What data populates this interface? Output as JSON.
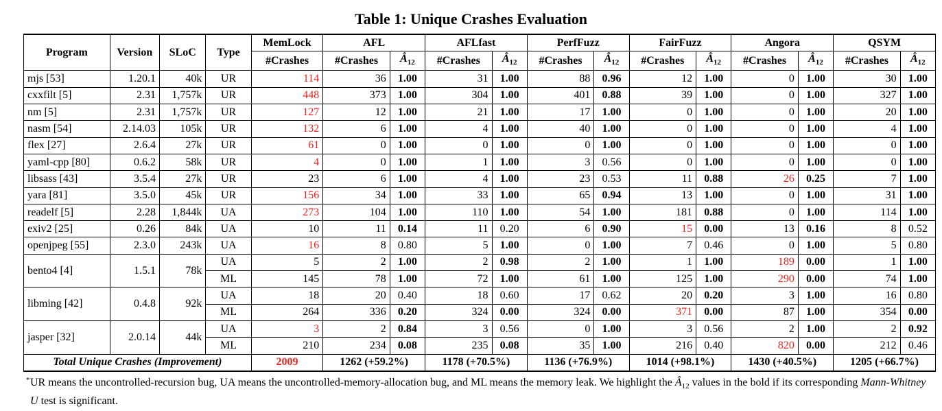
{
  "caption": "Table 1: Unique Crashes Evaluation",
  "headers": {
    "program": "Program",
    "version": "Version",
    "sloc": "SLoC",
    "type": "Type",
    "tools": [
      "MemLock",
      "AFL",
      "AFLfast",
      "PerfFuzz",
      "FairFuzz",
      "Angora",
      "QSYM"
    ],
    "crashes": "#Crashes",
    "a12_symbol": "Â",
    "a12_sub": "12"
  },
  "groups": [
    {
      "program": "mjs [53]",
      "version": "1.20.1",
      "sloc": "40k",
      "rows": [
        {
          "type": "UR",
          "memlock": "114",
          "memlock_red": true,
          "tools": [
            [
              "36",
              "1.00",
              true,
              false
            ],
            [
              "31",
              "1.00",
              true,
              false
            ],
            [
              "88",
              "0.96",
              true,
              false
            ],
            [
              "12",
              "1.00",
              true,
              false
            ],
            [
              "0",
              "1.00",
              true,
              false
            ],
            [
              "30",
              "1.00",
              true,
              false
            ]
          ]
        }
      ]
    },
    {
      "program": "cxxfilt [5]",
      "version": "2.31",
      "sloc": "1,757k",
      "rows": [
        {
          "type": "UR",
          "memlock": "448",
          "memlock_red": true,
          "tools": [
            [
              "373",
              "1.00",
              true,
              false
            ],
            [
              "304",
              "1.00",
              true,
              false
            ],
            [
              "401",
              "0.88",
              true,
              false
            ],
            [
              "39",
              "1.00",
              true,
              false
            ],
            [
              "0",
              "1.00",
              true,
              false
            ],
            [
              "327",
              "1.00",
              true,
              false
            ]
          ]
        }
      ]
    },
    {
      "program": "nm [5]",
      "version": "2.31",
      "sloc": "1,757k",
      "rows": [
        {
          "type": "UR",
          "memlock": "127",
          "memlock_red": true,
          "tools": [
            [
              "12",
              "1.00",
              true,
              false
            ],
            [
              "21",
              "1.00",
              true,
              false
            ],
            [
              "17",
              "1.00",
              true,
              false
            ],
            [
              "0",
              "1.00",
              true,
              false
            ],
            [
              "0",
              "1.00",
              true,
              false
            ],
            [
              "20",
              "1.00",
              true,
              false
            ]
          ]
        }
      ]
    },
    {
      "program": "nasm [54]",
      "version": "2.14.03",
      "sloc": "105k",
      "rows": [
        {
          "type": "UR",
          "memlock": "132",
          "memlock_red": true,
          "tools": [
            [
              "6",
              "1.00",
              true,
              false
            ],
            [
              "4",
              "1.00",
              true,
              false
            ],
            [
              "40",
              "1.00",
              true,
              false
            ],
            [
              "0",
              "1.00",
              true,
              false
            ],
            [
              "0",
              "1.00",
              true,
              false
            ],
            [
              "4",
              "1.00",
              true,
              false
            ]
          ]
        }
      ]
    },
    {
      "program": "flex [27]",
      "version": "2.6.4",
      "sloc": "27k",
      "rows": [
        {
          "type": "UR",
          "memlock": "61",
          "memlock_red": true,
          "tools": [
            [
              "0",
              "1.00",
              true,
              false
            ],
            [
              "0",
              "1.00",
              true,
              false
            ],
            [
              "0",
              "1.00",
              true,
              false
            ],
            [
              "0",
              "1.00",
              true,
              false
            ],
            [
              "0",
              "1.00",
              true,
              false
            ],
            [
              "0",
              "1.00",
              true,
              false
            ]
          ]
        }
      ]
    },
    {
      "program": "yaml-cpp [80]",
      "version": "0.6.2",
      "sloc": "58k",
      "rows": [
        {
          "type": "UR",
          "memlock": "4",
          "memlock_red": true,
          "tools": [
            [
              "0",
              "1.00",
              true,
              false
            ],
            [
              "1",
              "1.00",
              true,
              false
            ],
            [
              "3",
              "0.56",
              false,
              false
            ],
            [
              "0",
              "1.00",
              true,
              false
            ],
            [
              "0",
              "1.00",
              true,
              false
            ],
            [
              "0",
              "1.00",
              true,
              false
            ]
          ]
        }
      ]
    },
    {
      "program": "libsass [43]",
      "version": "3.5.4",
      "sloc": "27k",
      "rows": [
        {
          "type": "UR",
          "memlock": "23",
          "memlock_red": false,
          "tools": [
            [
              "6",
              "1.00",
              true,
              false
            ],
            [
              "4",
              "1.00",
              true,
              false
            ],
            [
              "23",
              "0.53",
              false,
              false
            ],
            [
              "11",
              "0.88",
              true,
              false
            ],
            [
              "26",
              "0.25",
              true,
              true
            ],
            [
              "7",
              "1.00",
              true,
              false
            ]
          ]
        }
      ]
    },
    {
      "program": "yara [81]",
      "version": "3.5.0",
      "sloc": "45k",
      "rows": [
        {
          "type": "UR",
          "memlock": "156",
          "memlock_red": true,
          "tools": [
            [
              "34",
              "1.00",
              true,
              false
            ],
            [
              "33",
              "1.00",
              true,
              false
            ],
            [
              "65",
              "0.94",
              true,
              false
            ],
            [
              "13",
              "1.00",
              true,
              false
            ],
            [
              "0",
              "1.00",
              true,
              false
            ],
            [
              "31",
              "1.00",
              true,
              false
            ]
          ]
        }
      ]
    },
    {
      "program": "readelf [5]",
      "version": "2.28",
      "sloc": "1,844k",
      "rows": [
        {
          "type": "UA",
          "memlock": "273",
          "memlock_red": true,
          "tools": [
            [
              "104",
              "1.00",
              true,
              false
            ],
            [
              "110",
              "1.00",
              true,
              false
            ],
            [
              "54",
              "1.00",
              true,
              false
            ],
            [
              "181",
              "0.88",
              true,
              false
            ],
            [
              "0",
              "1.00",
              true,
              false
            ],
            [
              "114",
              "1.00",
              true,
              false
            ]
          ]
        }
      ]
    },
    {
      "program": "exiv2 [25]",
      "version": "0.26",
      "sloc": "84k",
      "rows": [
        {
          "type": "UA",
          "memlock": "10",
          "memlock_red": false,
          "tools": [
            [
              "11",
              "0.14",
              true,
              false
            ],
            [
              "11",
              "0.20",
              false,
              false
            ],
            [
              "6",
              "0.90",
              true,
              false
            ],
            [
              "15",
              "0.00",
              true,
              true
            ],
            [
              "13",
              "0.16",
              true,
              false
            ],
            [
              "8",
              "0.52",
              false,
              false
            ]
          ]
        }
      ]
    },
    {
      "program": "openjpeg [55]",
      "version": "2.3.0",
      "sloc": "243k",
      "rows": [
        {
          "type": "UA",
          "memlock": "16",
          "memlock_red": true,
          "tools": [
            [
              "8",
              "0.80",
              false,
              false
            ],
            [
              "5",
              "1.00",
              true,
              false
            ],
            [
              "0",
              "1.00",
              true,
              false
            ],
            [
              "7",
              "0.46",
              false,
              false
            ],
            [
              "0",
              "1.00",
              true,
              false
            ],
            [
              "5",
              "0.80",
              false,
              false
            ]
          ]
        }
      ]
    },
    {
      "program": "bento4 [4]",
      "version": "1.5.1",
      "sloc": "78k",
      "rows": [
        {
          "type": "UA",
          "memlock": "5",
          "memlock_red": false,
          "tools": [
            [
              "2",
              "1.00",
              true,
              false
            ],
            [
              "2",
              "0.98",
              true,
              false
            ],
            [
              "2",
              "1.00",
              true,
              false
            ],
            [
              "1",
              "1.00",
              true,
              false
            ],
            [
              "189",
              "0.00",
              true,
              true
            ],
            [
              "1",
              "1.00",
              true,
              false
            ]
          ]
        },
        {
          "type": "ML",
          "memlock": "145",
          "memlock_red": false,
          "tools": [
            [
              "78",
              "1.00",
              true,
              false
            ],
            [
              "72",
              "1.00",
              true,
              false
            ],
            [
              "61",
              "1.00",
              true,
              false
            ],
            [
              "125",
              "1.00",
              true,
              false
            ],
            [
              "290",
              "0.00",
              true,
              true
            ],
            [
              "74",
              "1.00",
              true,
              false
            ]
          ]
        }
      ]
    },
    {
      "program": "libming [42]",
      "version": "0.4.8",
      "sloc": "92k",
      "rows": [
        {
          "type": "UA",
          "memlock": "18",
          "memlock_red": false,
          "tools": [
            [
              "20",
              "0.40",
              false,
              false
            ],
            [
              "18",
              "0.60",
              false,
              false
            ],
            [
              "17",
              "0.62",
              false,
              false
            ],
            [
              "20",
              "0.20",
              true,
              false
            ],
            [
              "3",
              "1.00",
              true,
              false
            ],
            [
              "16",
              "0.80",
              false,
              false
            ]
          ]
        },
        {
          "type": "ML",
          "memlock": "264",
          "memlock_red": false,
          "tools": [
            [
              "336",
              "0.20",
              true,
              false
            ],
            [
              "324",
              "0.00",
              true,
              false
            ],
            [
              "324",
              "0.00",
              true,
              false
            ],
            [
              "371",
              "0.00",
              true,
              true
            ],
            [
              "87",
              "1.00",
              true,
              false
            ],
            [
              "354",
              "0.00",
              true,
              false
            ]
          ]
        }
      ]
    },
    {
      "program": "jasper [32]",
      "version": "2.0.14",
      "sloc": "44k",
      "rows": [
        {
          "type": "UA",
          "memlock": "3",
          "memlock_red": true,
          "tools": [
            [
              "2",
              "0.84",
              true,
              false
            ],
            [
              "3",
              "0.56",
              false,
              false
            ],
            [
              "0",
              "1.00",
              true,
              false
            ],
            [
              "3",
              "0.56",
              false,
              false
            ],
            [
              "2",
              "1.00",
              true,
              false
            ],
            [
              "2",
              "0.92",
              true,
              false
            ]
          ]
        },
        {
          "type": "ML",
          "memlock": "210",
          "memlock_red": false,
          "tools": [
            [
              "234",
              "0.08",
              true,
              false
            ],
            [
              "235",
              "0.08",
              true,
              false
            ],
            [
              "35",
              "1.00",
              true,
              false
            ],
            [
              "216",
              "0.40",
              false,
              false
            ],
            [
              "820",
              "0.00",
              true,
              true
            ],
            [
              "212",
              "0.46",
              false,
              false
            ]
          ]
        }
      ]
    }
  ],
  "total": {
    "label": "Total Unique Crashes (Improvement)",
    "memlock": "2009",
    "tools": [
      "1262 (+59.2%)",
      "1178 (+70.5%)",
      "1136 (+76.9%)",
      "1014 (+98.1%)",
      "1430 (+40.5%)",
      "1205 (+66.7%)"
    ]
  },
  "footnote": {
    "star": "*",
    "part1": "UR means the uncontrolled-recursion bug, UA means the uncontrolled-memory-allocation bug, and ML means the memory leak. We highlight the ",
    "part2": " values in the bold if its corresponding ",
    "test_name": "Mann-Whitney U",
    "part3": " test is significant."
  }
}
